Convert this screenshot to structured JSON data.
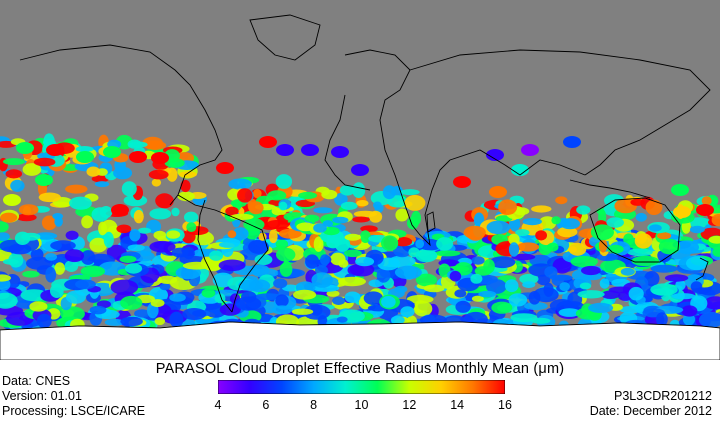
{
  "title": "PARASOL Cloud Droplet Effective Radius Monthly Mean (μm)",
  "meta_left": {
    "data": "Data: CNES",
    "version": "Version: 01.01",
    "processing": "Processing: LSCE/ICARE"
  },
  "meta_right": {
    "product": "P3L3CDR201212",
    "date": "Date: December 2012"
  },
  "colorbar": {
    "min": 4,
    "max": 16,
    "ticks": [
      "4",
      "6",
      "8",
      "10",
      "12",
      "14",
      "16"
    ],
    "colors": [
      "#8800ff",
      "#3300ff",
      "#0044ff",
      "#00a8ff",
      "#00f0d0",
      "#00ff55",
      "#c8ff00",
      "#ffd000",
      "#ff7700",
      "#ff0000"
    ]
  },
  "map": {
    "land_color": "#808080",
    "coastline_color": "#000000",
    "antarctica_color": "#ffffff"
  }
}
